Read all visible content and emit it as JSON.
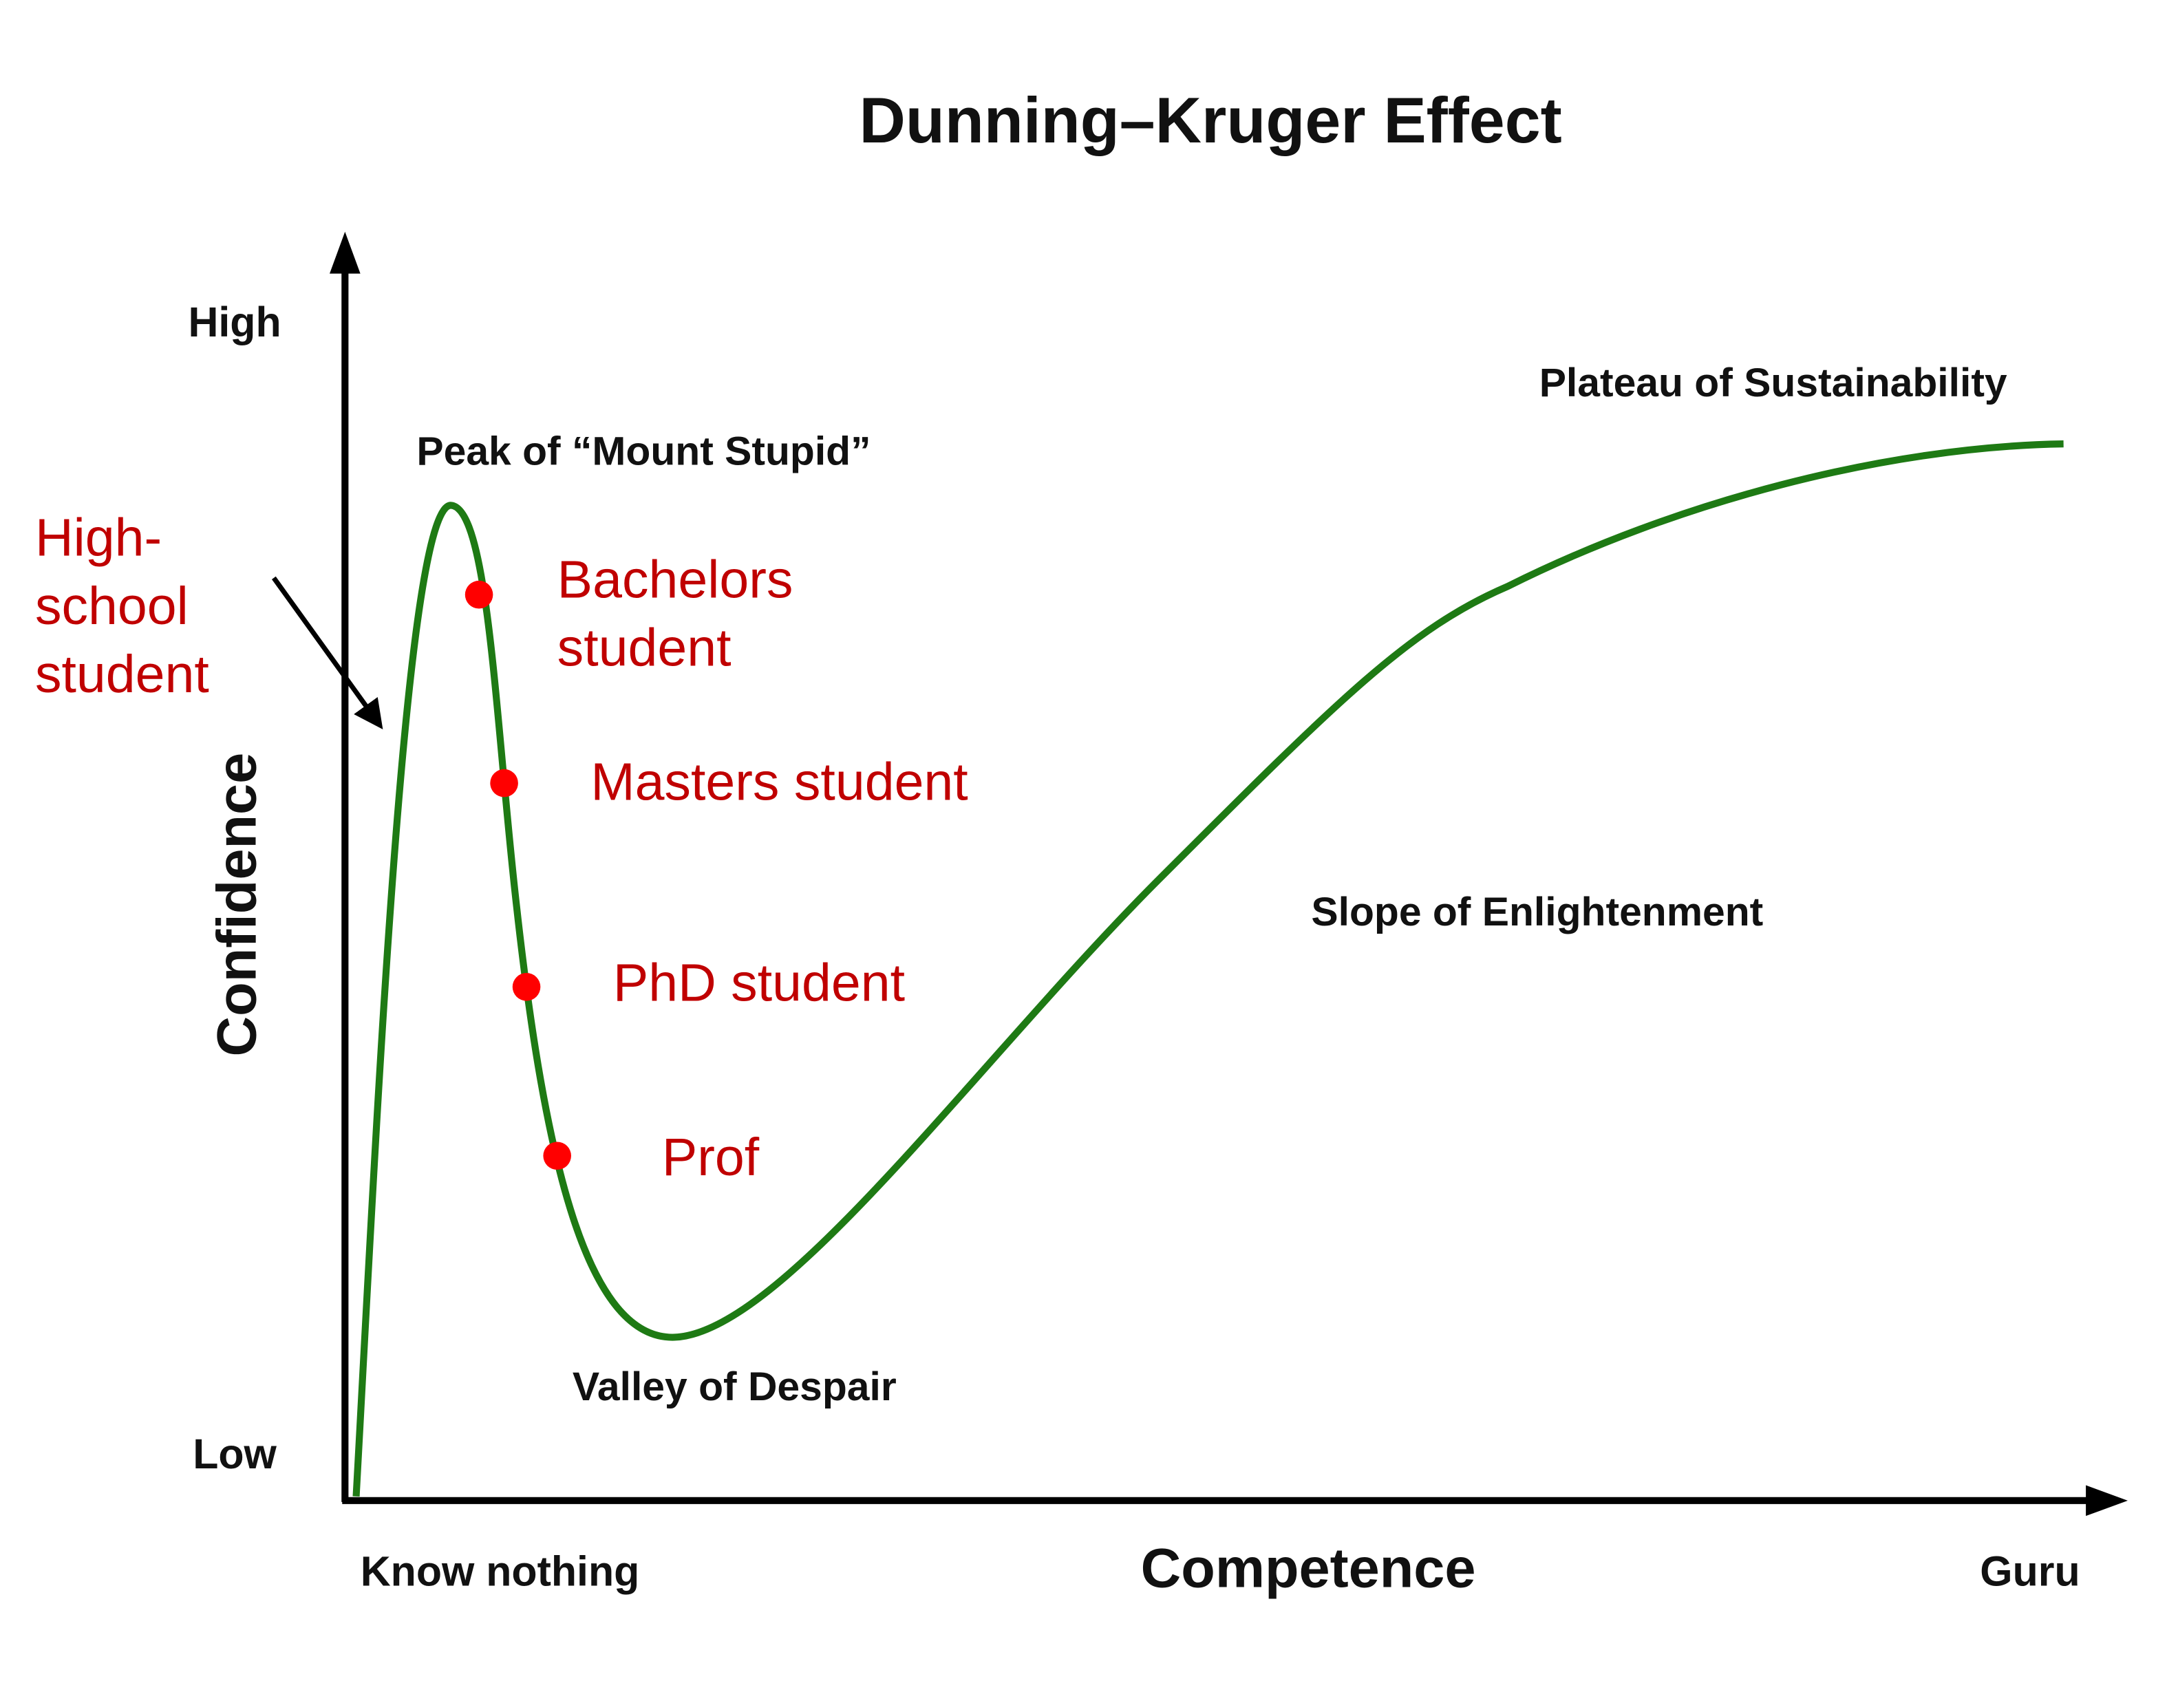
{
  "title": "Dunning–Kruger Effect",
  "axes": {
    "y_label": "Confidence",
    "y_high": "High",
    "y_low": "Low",
    "x_label": "Competence",
    "x_start": "Know nothing",
    "x_end": "Guru"
  },
  "stages": {
    "peak": "Peak of “Mount Stupid”",
    "valley": "Valley of Despair",
    "slope": "Slope of Enlightenment",
    "plateau": "Plateau of Sustainability"
  },
  "students": {
    "high_school": [
      "High-",
      "school",
      "student"
    ],
    "bachelors": [
      "Bachelors",
      "student"
    ],
    "masters": "Masters student",
    "phd": "PhD student",
    "prof": "Prof"
  }
}
